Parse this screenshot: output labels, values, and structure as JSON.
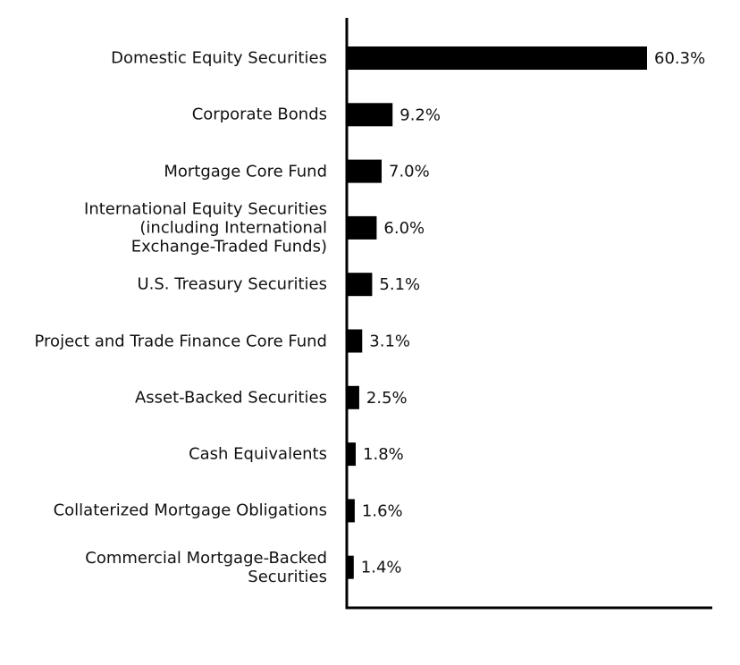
{
  "chart_data": {
    "type": "bar",
    "orientation": "horizontal",
    "categories": [
      "Domestic Equity Securities",
      "Corporate Bonds",
      "Mortgage Core Fund",
      "International Equity Securities\n(including International\nExchange-Traded Funds)",
      "U.S. Treasury Securities",
      "Project and Trade Finance Core Fund",
      "Asset-Backed Securities",
      "Cash Equivalents",
      "Collaterized Mortgage Obligations",
      "Commercial Mortgage-Backed\nSecurities"
    ],
    "values": [
      60.3,
      9.2,
      7.0,
      6.0,
      5.1,
      3.1,
      2.5,
      1.8,
      1.6,
      1.4
    ],
    "value_labels": [
      "60.3%",
      "9.2%",
      "7.0%",
      "6.0%",
      "5.1%",
      "3.1%",
      "2.5%",
      "1.8%",
      "1.6%",
      "1.4%"
    ],
    "color": "#000000",
    "xlim": [
      0,
      73.4
    ]
  }
}
